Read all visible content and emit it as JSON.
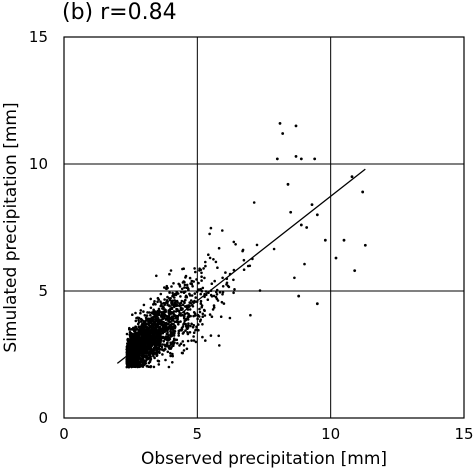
{
  "chart_data": {
    "type": "scatter",
    "title": "(b) r=0.84",
    "xlabel": "Observed precipitation [mm]",
    "ylabel": "Simulated precipitation [mm]",
    "xlim": [
      0,
      15
    ],
    "ylim": [
      0,
      15
    ],
    "xticks": [
      "0",
      "5",
      "10",
      "15"
    ],
    "yticks": [
      "0",
      "5",
      "10",
      "15"
    ],
    "grid": true,
    "regression_line": {
      "x": [
        2.0,
        11.3
      ],
      "y": [
        2.15,
        9.8
      ]
    },
    "points": [
      [
        8.1,
        11.6
      ],
      [
        8.7,
        11.5
      ],
      [
        8.2,
        11.2
      ],
      [
        8.7,
        10.3
      ],
      [
        8.0,
        10.2
      ],
      [
        8.9,
        10.2
      ],
      [
        9.4,
        10.2
      ],
      [
        10.8,
        9.5
      ],
      [
        11.2,
        8.9
      ],
      [
        9.5,
        8.0
      ],
      [
        9.8,
        7.0
      ],
      [
        10.5,
        7.0
      ],
      [
        11.3,
        6.8
      ],
      [
        10.9,
        5.8
      ],
      [
        10.2,
        6.3
      ],
      [
        8.4,
        9.2
      ],
      [
        9.3,
        8.4
      ],
      [
        8.9,
        7.6
      ],
      [
        9.1,
        7.5
      ],
      [
        8.5,
        8.1
      ],
      [
        9.5,
        4.5
      ],
      [
        8.8,
        4.8
      ]
    ],
    "cloud": {
      "n": 1900,
      "x_center": 3.55,
      "x_spread": 1.5,
      "slope": 0.8,
      "intercept": 0.6,
      "noise": 0.6
    },
    "colors": {
      "points": "#000000",
      "grid": "#000000",
      "axes": "#000000"
    }
  }
}
